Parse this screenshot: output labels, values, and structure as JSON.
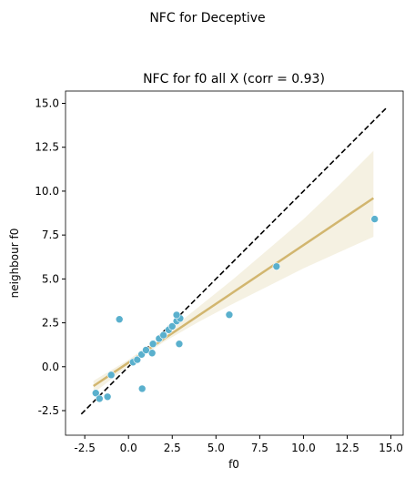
{
  "chart_data": {
    "type": "scatter",
    "suptitle": "NFC for Deceptive",
    "title": "NFC for f0 all X (corr = 0.93)",
    "x_label": "f0",
    "y_label": "neighbour f0",
    "x": [
      -0.52,
      -1.87,
      -1.66,
      -1.2,
      -0.99,
      0.78,
      1.35,
      2.9,
      5.76,
      8.46,
      14.07,
      0.26,
      0.5,
      0.75,
      1.0,
      1.4,
      1.75,
      2.0,
      2.3,
      2.5,
      2.75,
      2.95,
      2.75
    ],
    "y": [
      2.7,
      -1.5,
      -1.82,
      -1.71,
      -0.47,
      -1.25,
      0.78,
      1.3,
      2.96,
      5.71,
      8.41,
      0.26,
      0.4,
      0.7,
      0.95,
      1.3,
      1.6,
      1.8,
      2.1,
      2.3,
      2.6,
      2.75,
      2.95
    ],
    "color": "#5ab0cd",
    "fit": {
      "x": [
        -2,
        14
      ],
      "y": [
        -1.1,
        9.6
      ],
      "color": "#d2b66f"
    },
    "band": {
      "x": [
        -2,
        0,
        2,
        4,
        6,
        8,
        10,
        12,
        14
      ],
      "upper": [
        -0.8,
        0.4,
        1.8,
        3.4,
        5.0,
        6.7,
        8.4,
        10.3,
        12.3
      ],
      "lower": [
        -1.5,
        0.05,
        1.4,
        2.55,
        3.6,
        4.6,
        5.6,
        6.5,
        7.4
      ],
      "color": "#f5f1e2"
    },
    "identity": {
      "x": [
        -2.7,
        14.8
      ],
      "y": [
        -2.7,
        14.8
      ],
      "color": "#000000"
    },
    "xlim": [
      -3.6,
      15.7
    ],
    "ylim": [
      -3.9,
      15.7
    ],
    "xticks": [
      -2.5,
      {
        "value": 0,
        "label": "0.0"
      },
      2.5,
      {
        "value": 5,
        "label": "5.0"
      },
      7.5,
      {
        "value": 10,
        "label": "10.0"
      },
      12.5,
      {
        "value": 15,
        "label": "15.0"
      }
    ],
    "yticks": [
      -2.5,
      {
        "value": 0,
        "label": "0.0"
      },
      2.5,
      {
        "value": 5,
        "label": "5.0"
      },
      7.5,
      {
        "value": 10,
        "label": "10.0"
      },
      12.5,
      {
        "value": 15,
        "label": "15.0"
      }
    ]
  }
}
